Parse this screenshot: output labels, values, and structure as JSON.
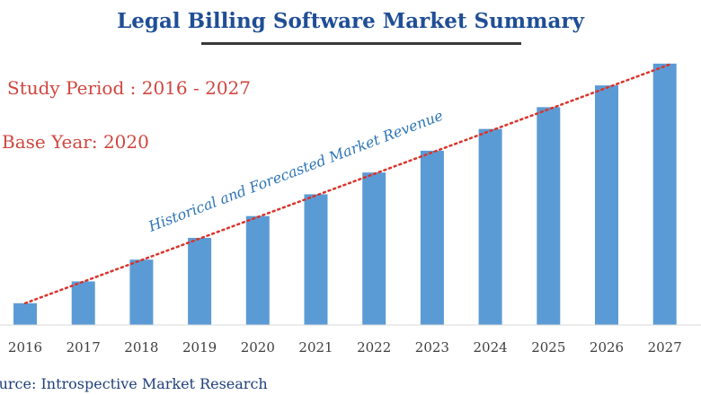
{
  "header": {
    "title": "Legal Billing Software Market Summary"
  },
  "info": {
    "study_period": "Study Period : 2016 - 2027",
    "base_year": "Base Year: 2020"
  },
  "footer": {
    "source": "Source: Introspective Market Research"
  },
  "colors": {
    "title": "#1f4e96",
    "bar": "#5b9bd5",
    "trend": "#d9342b",
    "info_text": "#d0463f",
    "annotation": "#2e75b6"
  },
  "chart_data": {
    "type": "bar",
    "title": "Legal Billing Software Market Summary",
    "xlabel": "",
    "ylabel": "",
    "categories": [
      "2016",
      "2017",
      "2018",
      "2019",
      "2020",
      "2021",
      "2022",
      "2023",
      "2024",
      "2025",
      "2026",
      "2027"
    ],
    "values": [
      1.0,
      2.0,
      3.0,
      4.0,
      5.0,
      6.0,
      7.0,
      8.0,
      9.0,
      10.0,
      11.0,
      12.0
    ],
    "ylim": [
      0,
      12.2
    ],
    "annotation": "Historical and Forecasted Market Revenue",
    "trendline": "dotted",
    "grid": false,
    "legend": "none"
  }
}
